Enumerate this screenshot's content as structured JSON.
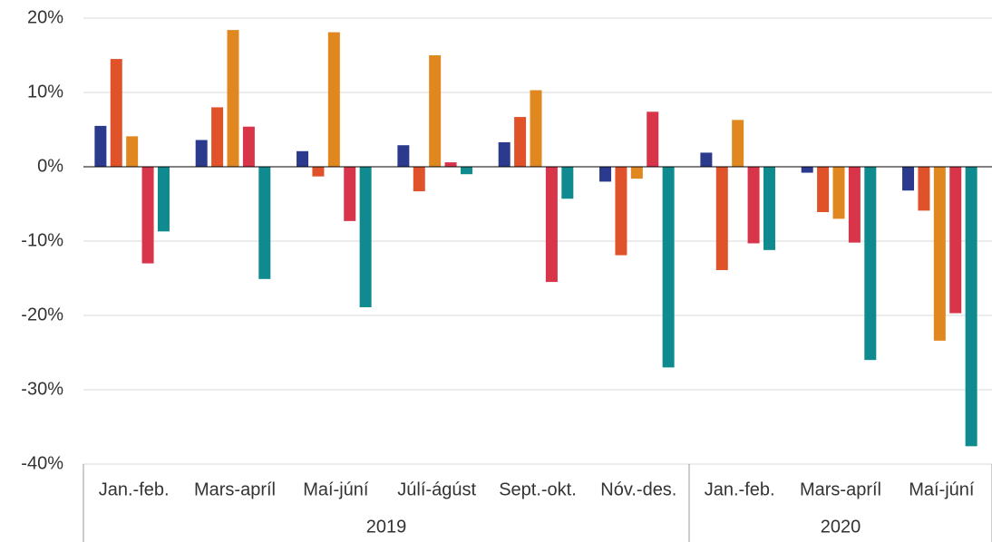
{
  "chart_data": {
    "type": "bar",
    "groups": [
      {
        "label": "2019",
        "categories": [
          "Jan.-feb.",
          "Mars-apríl",
          "Maí-júní",
          "Júlí-ágúst",
          "Sept.-okt.",
          "Nóv.-des."
        ]
      },
      {
        "label": "2020",
        "categories": [
          "Jan.-feb.",
          "Mars-apríl",
          "Maí-júní"
        ]
      }
    ],
    "series": [
      {
        "color": "#2b3a8c",
        "values": [
          5.5,
          3.6,
          2.1,
          2.9,
          3.3,
          -2.0,
          1.9,
          -0.8,
          -3.2
        ]
      },
      {
        "color": "#e0522a",
        "values": [
          14.5,
          8.0,
          -1.3,
          -3.3,
          6.7,
          -11.9,
          -13.9,
          -6.1,
          -5.9
        ]
      },
      {
        "color": "#e0871f",
        "values": [
          4.1,
          18.4,
          18.1,
          15.0,
          10.3,
          -1.6,
          6.3,
          -7.0,
          -23.4
        ]
      },
      {
        "color": "#d8344a",
        "values": [
          -13.0,
          5.4,
          -7.3,
          0.6,
          -15.5,
          7.4,
          -10.3,
          -10.2,
          -19.7
        ]
      },
      {
        "color": "#0f8a8e",
        "values": [
          -8.7,
          -15.1,
          -18.9,
          -1.0,
          -4.3,
          -27.0,
          -11.2,
          -26.0,
          -37.6
        ]
      }
    ],
    "ylim": [
      -40,
      20
    ],
    "yticks": [
      {
        "value": -40,
        "label": "-40%"
      },
      {
        "value": -30,
        "label": "-30%"
      },
      {
        "value": -20,
        "label": "-20%"
      },
      {
        "value": -10,
        "label": "-10%"
      },
      {
        "value": 0,
        "label": "0%"
      },
      {
        "value": 10,
        "label": "10%"
      },
      {
        "value": 20,
        "label": "20%"
      }
    ],
    "grid": true
  }
}
